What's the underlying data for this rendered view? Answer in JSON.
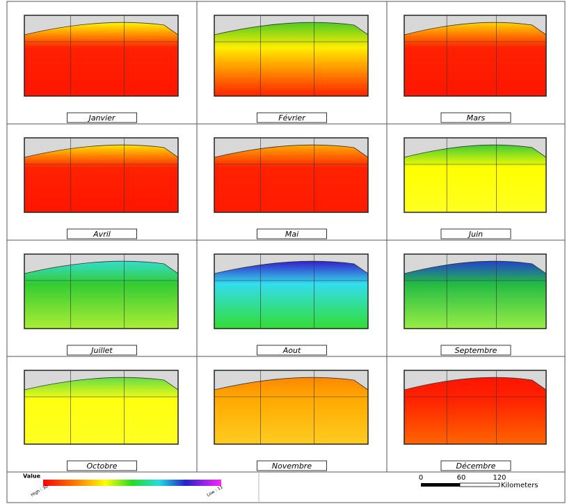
{
  "panels": [
    {
      "label": "Janvier"
    },
    {
      "label": "Février"
    },
    {
      "label": "Mars"
    },
    {
      "label": "Avril"
    },
    {
      "label": "Mai"
    },
    {
      "label": "Juin"
    },
    {
      "label": "Juillet"
    },
    {
      "label": "Aout"
    },
    {
      "label": "Septembre"
    },
    {
      "label": "Octobre"
    },
    {
      "label": "Novembre"
    },
    {
      "label": "Décembre"
    }
  ],
  "legend": {
    "title": "Value",
    "high": "High : 30",
    "low": "Low : 11"
  },
  "scale_bar": {
    "ticks": [
      "0",
      "60",
      "120"
    ],
    "unit": "Kilometers"
  }
}
